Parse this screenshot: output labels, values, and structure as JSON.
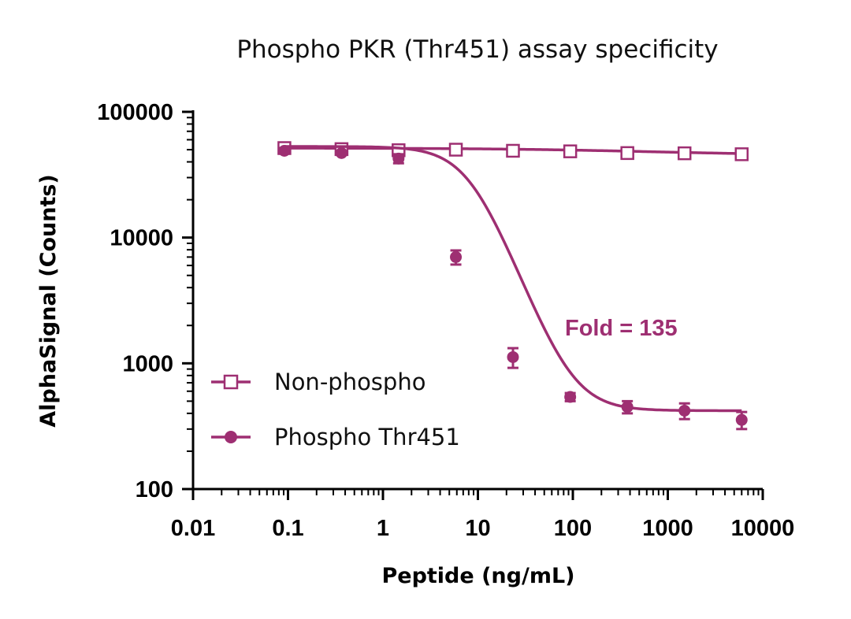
{
  "chart_data": {
    "type": "scatter",
    "title": "Phospho PKR (Thr451) assay specificity",
    "xlabel": "Peptide (ng/mL)",
    "ylabel": "AlphaSignal (Counts)",
    "xscale": "log",
    "yscale": "log",
    "xlim": [
      0.01,
      10000
    ],
    "ylim": [
      100,
      100000
    ],
    "x_ticks": [
      "0.01",
      "0.1",
      "1",
      "10",
      "100",
      "1000",
      "10000"
    ],
    "y_ticks": [
      "100",
      "1000",
      "10000",
      "100000"
    ],
    "series_color": "#9E2F72",
    "legend_position": "left",
    "annotation": "Fold = 135",
    "series": [
      {
        "name": "Non-phospho",
        "marker": "open-square",
        "x": [
          0.0916,
          0.366,
          1.46,
          5.86,
          23.4,
          93.8,
          375,
          1500,
          6000
        ],
        "y": [
          51500,
          50500,
          49500,
          50000,
          49000,
          48500,
          47000,
          46800,
          46000
        ],
        "err": [
          1500,
          1000,
          1000,
          1000,
          1000,
          1000,
          1000,
          1200,
          1200
        ],
        "fit": {
          "bottom": 45000,
          "top": 51500,
          "ec50": 600,
          "hill": 0.5
        }
      },
      {
        "name": "Phospho Thr451",
        "marker": "filled-circle",
        "x": [
          0.0916,
          0.366,
          1.46,
          5.86,
          23.4,
          93.8,
          375,
          1500,
          6000
        ],
        "y": [
          49000,
          47000,
          42500,
          7000,
          1120,
          540,
          450,
          420,
          355
        ],
        "err": [
          2500,
          1500,
          3500,
          900,
          200,
          40,
          50,
          60,
          55
        ],
        "fit": {
          "bottom": 420,
          "top": 53000,
          "ec50": 8.5,
          "hill": 2.0
        }
      }
    ]
  }
}
